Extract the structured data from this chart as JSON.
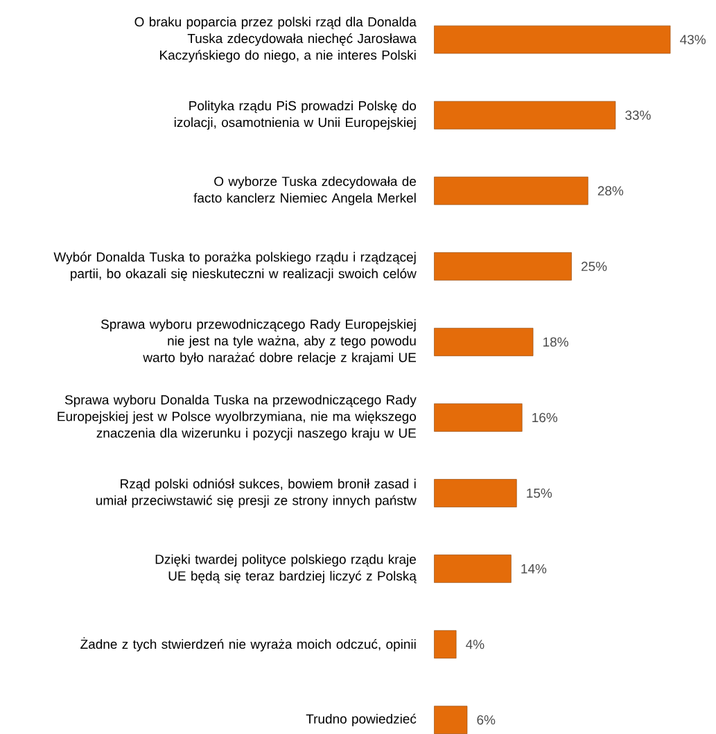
{
  "chart_data": {
    "type": "bar",
    "orientation": "horizontal",
    "color": "#e46c0a",
    "categories": [
      "O braku poparcia przez polski rząd dla Donalda Tuska zdecydowała niechęć Jarosława Kaczyńskiego do niego, a nie interes Polski",
      "Polityka rządu PiS prowadzi Polskę do izolacji, osamotnienia w Unii Europejskiej",
      "O wyborze Tuska zdecydowała de facto kanclerz Niemiec Angela Merkel",
      "Wybór Donalda Tuska to porażka polskiego rządu i rządzącej partii, bo okazali się nieskuteczni w realizacji swoich celów",
      "Sprawa wyboru przewodniczącego Rady Europejskiej nie jest na tyle ważna, aby z tego powodu warto było narażać dobre relacje z krajami UE",
      "Sprawa wyboru Donalda Tuska na przewodniczącego Rady Europejskiej jest w Polsce wyolbrzymiana, nie ma większego znaczenia dla wizerunku i pozycji naszego kraju w UE",
      "Rząd polski odniósł sukces, bowiem bronił zasad i umiał przeciwstawić się presji ze strony innych państw",
      "Dzięki twardej polityce polskiego rządu kraje UE będą się teraz bardziej liczyć z Polską",
      "Żadne z tych stwierdzeń nie wyraża moich odczuć, opinii",
      "Trudno powiedzieć"
    ],
    "values": [
      43,
      33,
      28,
      25,
      18,
      16,
      15,
      14,
      4,
      6
    ],
    "value_labels": [
      "43%",
      "33%",
      "28%",
      "25%",
      "18%",
      "16%",
      "15%",
      "14%",
      "4%",
      "6%"
    ]
  }
}
